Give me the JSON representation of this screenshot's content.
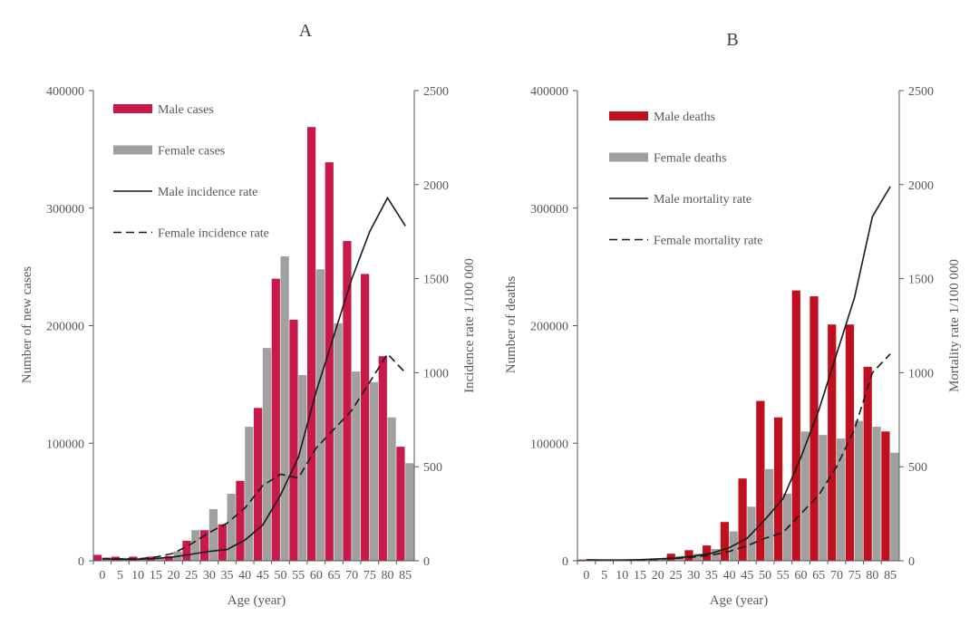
{
  "chart_data": [
    {
      "panel_label": "A",
      "type": "bar",
      "categories": [
        "0",
        "5",
        "10",
        "15",
        "20",
        "25",
        "30",
        "35",
        "40",
        "45",
        "50",
        "55",
        "60",
        "65",
        "70",
        "75",
        "80",
        "85"
      ],
      "xlabel": "Age (year)",
      "ylabel": "Number of new cases",
      "y2label": "Incidence rate 1/100 000",
      "ylim": [
        0,
        400000
      ],
      "y2lim": [
        0,
        2500
      ],
      "yticks": [
        "0",
        "100000",
        "200000",
        "300000",
        "400000"
      ],
      "y2ticks": [
        "0",
        "500",
        "1000",
        "1500",
        "2000",
        "2500"
      ],
      "series": [
        {
          "name": "Male cases",
          "kind": "bar",
          "axis": "left",
          "color": "#c8194b",
          "values": [
            5000,
            3500,
            3500,
            3500,
            4000,
            17000,
            26000,
            31000,
            68000,
            130000,
            240000,
            205000,
            369000,
            339000,
            272000,
            244000,
            174000,
            97000
          ]
        },
        {
          "name": "Female cases",
          "kind": "bar",
          "axis": "left",
          "color": "#a0a0a0",
          "values": [
            3000,
            2500,
            2500,
            3000,
            8000,
            26000,
            44000,
            57000,
            114000,
            181000,
            259000,
            158000,
            248000,
            202000,
            161000,
            152000,
            122000,
            83000
          ]
        },
        {
          "name": "Male incidence rate",
          "kind": "line",
          "axis": "right",
          "dash": "solid",
          "color": "#1a1a1a",
          "values": [
            10,
            8,
            8,
            12,
            20,
            35,
            50,
            60,
            110,
            190,
            350,
            550,
            900,
            1200,
            1500,
            1750,
            1930,
            1780
          ]
        },
        {
          "name": "Female incidence rate",
          "kind": "line",
          "axis": "right",
          "dash": "dashed",
          "color": "#1a1a1a",
          "values": [
            10,
            10,
            10,
            20,
            40,
            90,
            150,
            200,
            280,
            400,
            460,
            440,
            600,
            700,
            800,
            950,
            1100,
            1000
          ]
        }
      ],
      "legend": "top-left",
      "grid": false
    },
    {
      "panel_label": "B",
      "type": "bar",
      "categories": [
        "0",
        "5",
        "10",
        "15",
        "20",
        "25",
        "30",
        "35",
        "40",
        "45",
        "50",
        "55",
        "60",
        "65",
        "70",
        "75",
        "80",
        "85"
      ],
      "xlabel": "Age (year)",
      "ylabel": "Number of deaths",
      "y2label": "Mortality rate 1/100 000",
      "ylim": [
        0,
        400000
      ],
      "y2lim": [
        0,
        2500
      ],
      "yticks": [
        "0",
        "100000",
        "200000",
        "300000",
        "400000"
      ],
      "y2ticks": [
        "0",
        "500",
        "1000",
        "1500",
        "2000",
        "2500"
      ],
      "series": [
        {
          "name": "Male deaths",
          "kind": "bar",
          "axis": "left",
          "color": "#c01020",
          "values": [
            1000,
            700,
            700,
            900,
            1500,
            6000,
            9000,
            13000,
            33000,
            70000,
            136000,
            122000,
            230000,
            225000,
            201000,
            201000,
            165000,
            110000
          ]
        },
        {
          "name": "Female deaths",
          "kind": "bar",
          "axis": "left",
          "color": "#a0a0a0",
          "values": [
            800,
            600,
            600,
            700,
            1200,
            4000,
            6000,
            10000,
            25000,
            46000,
            78000,
            57000,
            110000,
            107000,
            104000,
            119000,
            114000,
            92000
          ]
        },
        {
          "name": "Male mortality rate",
          "kind": "line",
          "axis": "right",
          "dash": "solid",
          "color": "#1a1a1a",
          "values": [
            5,
            4,
            4,
            6,
            10,
            15,
            25,
            40,
            70,
            120,
            220,
            330,
            550,
            800,
            1100,
            1400,
            1830,
            1990
          ]
        },
        {
          "name": "Female mortality rate",
          "kind": "line",
          "axis": "right",
          "dash": "dashed",
          "color": "#1a1a1a",
          "values": [
            4,
            3,
            3,
            5,
            8,
            12,
            20,
            30,
            50,
            80,
            120,
            150,
            250,
            350,
            500,
            700,
            1000,
            1100
          ]
        }
      ],
      "legend": "top-left",
      "grid": false
    }
  ]
}
